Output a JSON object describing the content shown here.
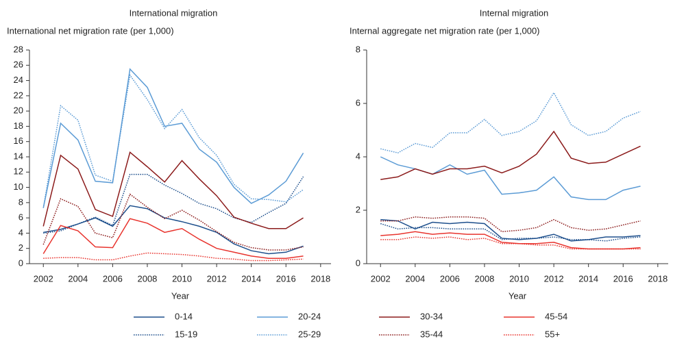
{
  "chart_data": [
    {
      "type": "line",
      "title": "International migration",
      "y_label": "International net migration rate (per 1,000)",
      "x_label": "Year",
      "x": [
        2002,
        2003,
        2004,
        2005,
        2006,
        2007,
        2008,
        2009,
        2010,
        2011,
        2012,
        2013,
        2014,
        2015,
        2016,
        2017
      ],
      "xlim": [
        2001.2,
        2018.6
      ],
      "xticks": [
        2002,
        2004,
        2006,
        2008,
        2010,
        2012,
        2014,
        2016,
        2018
      ],
      "ylim": [
        0,
        28
      ],
      "yticks": [
        0,
        2,
        4,
        6,
        8,
        10,
        12,
        14,
        16,
        18,
        20,
        22,
        24,
        26,
        28
      ],
      "series": [
        {
          "name": "0-14",
          "color": "#1d4f8c",
          "style": "solid",
          "values": [
            4.1,
            4.5,
            5.2,
            6.0,
            4.9,
            7.6,
            7.2,
            6.0,
            5.5,
            4.9,
            4.1,
            2.6,
            1.7,
            1.3,
            1.5,
            2.3
          ]
        },
        {
          "name": "15-19",
          "color": "#1d4f8c",
          "style": "dotted",
          "values": [
            4.0,
            4.3,
            5.2,
            6.1,
            5.0,
            11.7,
            11.7,
            10.3,
            9.2,
            7.9,
            7.2,
            6.0,
            5.4,
            6.7,
            7.9,
            11.4
          ]
        },
        {
          "name": "20-24",
          "color": "#5b9bd5",
          "style": "solid",
          "values": [
            7.3,
            18.4,
            16.2,
            10.8,
            10.6,
            25.5,
            23.1,
            18.0,
            18.4,
            15.0,
            13.3,
            10.0,
            7.9,
            9.0,
            10.8,
            14.5
          ]
        },
        {
          "name": "25-29",
          "color": "#5b9bd5",
          "style": "dotted",
          "values": [
            7.3,
            20.7,
            18.8,
            11.6,
            10.8,
            24.7,
            21.5,
            17.7,
            20.2,
            16.5,
            14.2,
            10.4,
            8.5,
            8.4,
            8.1,
            9.7
          ]
        },
        {
          "name": "30-34",
          "color": "#8b1a1a",
          "style": "solid",
          "values": [
            4.9,
            14.2,
            12.4,
            7.1,
            6.2,
            14.6,
            12.7,
            10.7,
            13.5,
            11.1,
            8.9,
            6.1,
            5.3,
            4.6,
            4.6,
            6.0
          ]
        },
        {
          "name": "35-44",
          "color": "#8b1a1a",
          "style": "dotted",
          "values": [
            2.5,
            8.5,
            7.5,
            4.0,
            3.4,
            9.1,
            7.4,
            5.9,
            7.0,
            5.7,
            4.2,
            2.8,
            2.1,
            1.8,
            1.8,
            2.2
          ]
        },
        {
          "name": "45-54",
          "color": "#e8332d",
          "style": "solid",
          "values": [
            1.3,
            5.0,
            4.3,
            2.2,
            2.1,
            5.9,
            5.3,
            4.1,
            4.6,
            3.2,
            2.0,
            1.5,
            1.0,
            0.7,
            0.7,
            1.0
          ]
        },
        {
          "name": "55+",
          "color": "#e8332d",
          "style": "dotted",
          "values": [
            0.7,
            0.8,
            0.8,
            0.5,
            0.5,
            1.0,
            1.4,
            1.3,
            1.2,
            1.0,
            0.7,
            0.6,
            0.4,
            0.4,
            0.5,
            0.6
          ]
        }
      ]
    },
    {
      "type": "line",
      "title": "Internal migration",
      "y_label": "Internal aggregate net migration rate (per 1,000)",
      "x_label": "Year",
      "x": [
        2002,
        2003,
        2004,
        2005,
        2006,
        2007,
        2008,
        2009,
        2010,
        2011,
        2012,
        2013,
        2014,
        2015,
        2016,
        2017
      ],
      "xlim": [
        2001.2,
        2018.6
      ],
      "xticks": [
        2002,
        2004,
        2006,
        2008,
        2010,
        2012,
        2014,
        2016,
        2018
      ],
      "ylim": [
        0,
        8
      ],
      "yticks": [
        0,
        2,
        4,
        6,
        8
      ],
      "series": [
        {
          "name": "0-14",
          "color": "#1d4f8c",
          "style": "solid",
          "values": [
            1.65,
            1.6,
            1.3,
            1.55,
            1.5,
            1.55,
            1.5,
            0.95,
            0.9,
            0.95,
            1.1,
            0.85,
            0.9,
            1.0,
            1.0,
            1.05
          ]
        },
        {
          "name": "15-19",
          "color": "#1d4f8c",
          "style": "dotted",
          "values": [
            1.5,
            1.3,
            1.35,
            1.35,
            1.3,
            1.3,
            1.3,
            0.9,
            0.95,
            0.95,
            1.0,
            0.9,
            0.9,
            0.85,
            0.95,
            1.0
          ]
        },
        {
          "name": "20-24",
          "color": "#5b9bd5",
          "style": "solid",
          "values": [
            4.0,
            3.7,
            3.55,
            3.35,
            3.7,
            3.35,
            3.5,
            2.6,
            2.65,
            2.75,
            3.25,
            2.5,
            2.4,
            2.4,
            2.75,
            2.9
          ]
        },
        {
          "name": "25-29",
          "color": "#5b9bd5",
          "style": "dotted",
          "values": [
            4.3,
            4.15,
            4.5,
            4.35,
            4.9,
            4.9,
            5.4,
            4.8,
            4.95,
            5.35,
            6.4,
            5.2,
            4.8,
            4.95,
            5.45,
            5.7
          ]
        },
        {
          "name": "30-34",
          "color": "#8b1a1a",
          "style": "solid",
          "values": [
            3.15,
            3.25,
            3.55,
            3.35,
            3.55,
            3.55,
            3.65,
            3.4,
            3.65,
            4.1,
            4.95,
            3.95,
            3.75,
            3.8,
            4.1,
            4.4
          ]
        },
        {
          "name": "35-44",
          "color": "#8b1a1a",
          "style": "dotted",
          "values": [
            1.6,
            1.6,
            1.75,
            1.7,
            1.75,
            1.75,
            1.7,
            1.2,
            1.25,
            1.35,
            1.65,
            1.35,
            1.25,
            1.3,
            1.45,
            1.6
          ]
        },
        {
          "name": "45-54",
          "color": "#e8332d",
          "style": "solid",
          "values": [
            1.05,
            1.1,
            1.2,
            1.1,
            1.15,
            1.1,
            1.1,
            0.8,
            0.75,
            0.75,
            0.8,
            0.6,
            0.55,
            0.55,
            0.55,
            0.6
          ]
        },
        {
          "name": "55+",
          "color": "#e8332d",
          "style": "dotted",
          "values": [
            0.9,
            0.9,
            1.0,
            0.95,
            1.0,
            0.9,
            0.95,
            0.75,
            0.75,
            0.7,
            0.7,
            0.55,
            0.55,
            0.55,
            0.55,
            0.55
          ]
        }
      ]
    }
  ]
}
